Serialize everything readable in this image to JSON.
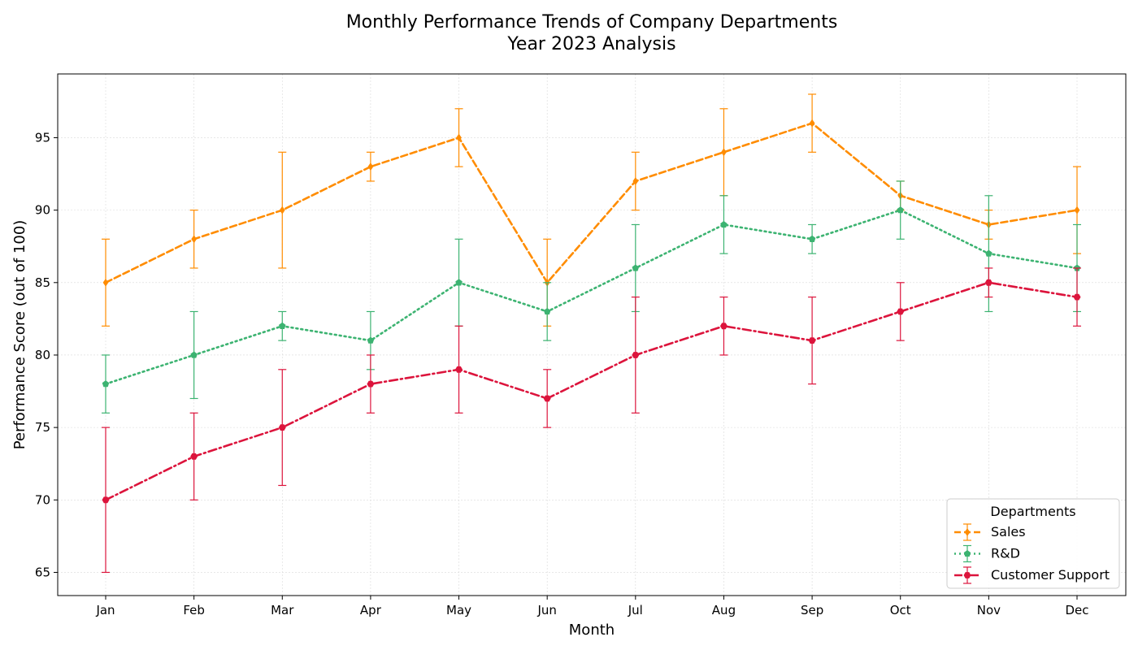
{
  "chart_data": {
    "type": "line",
    "title": "Monthly Performance Trends of Company Departments",
    "subtitle": "Year 2023 Analysis",
    "xlabel": "Month",
    "ylabel": "Performance Score (out of 100)",
    "categories": [
      "Jan",
      "Feb",
      "Mar",
      "Apr",
      "May",
      "Jun",
      "Jul",
      "Aug",
      "Sep",
      "Oct",
      "Nov",
      "Dec"
    ],
    "ylim": [
      63.4,
      99.4
    ],
    "yticks": [
      65,
      70,
      75,
      80,
      85,
      90,
      95
    ],
    "grid": true,
    "legend": {
      "title": "Departments",
      "placement": "bottom-right"
    },
    "series": [
      {
        "name": "Sales",
        "color": "#ff8c00",
        "line_style": "dashed",
        "marker": "diamond",
        "values": [
          85,
          88,
          90,
          93,
          95,
          85,
          92,
          94,
          96,
          91,
          89,
          90
        ],
        "error_low": [
          3,
          2,
          4,
          1,
          2,
          3,
          2,
          3,
          2,
          1,
          1,
          3
        ],
        "error_high": [
          3,
          2,
          4,
          1,
          2,
          3,
          2,
          3,
          2,
          1,
          1,
          3
        ]
      },
      {
        "name": "R&D",
        "color": "#3cb371",
        "line_style": "dotted",
        "marker": "pentagon",
        "values": [
          78,
          80,
          82,
          81,
          85,
          83,
          86,
          89,
          88,
          90,
          87,
          86
        ],
        "error_low": [
          2,
          3,
          1,
          2,
          3,
          2,
          3,
          2,
          1,
          2,
          4,
          3
        ],
        "error_high": [
          2,
          3,
          1,
          2,
          3,
          2,
          3,
          2,
          1,
          2,
          4,
          3
        ]
      },
      {
        "name": "Customer Support",
        "color": "#dc143c",
        "line_style": "dashdot",
        "marker": "hexagon",
        "values": [
          70,
          73,
          75,
          78,
          79,
          77,
          80,
          82,
          81,
          83,
          85,
          84
        ],
        "error_low": [
          5,
          3,
          4,
          2,
          3,
          2,
          4,
          2,
          3,
          2,
          1,
          2
        ],
        "error_high": [
          5,
          3,
          4,
          2,
          3,
          2,
          4,
          2,
          3,
          2,
          1,
          2
        ]
      }
    ]
  }
}
